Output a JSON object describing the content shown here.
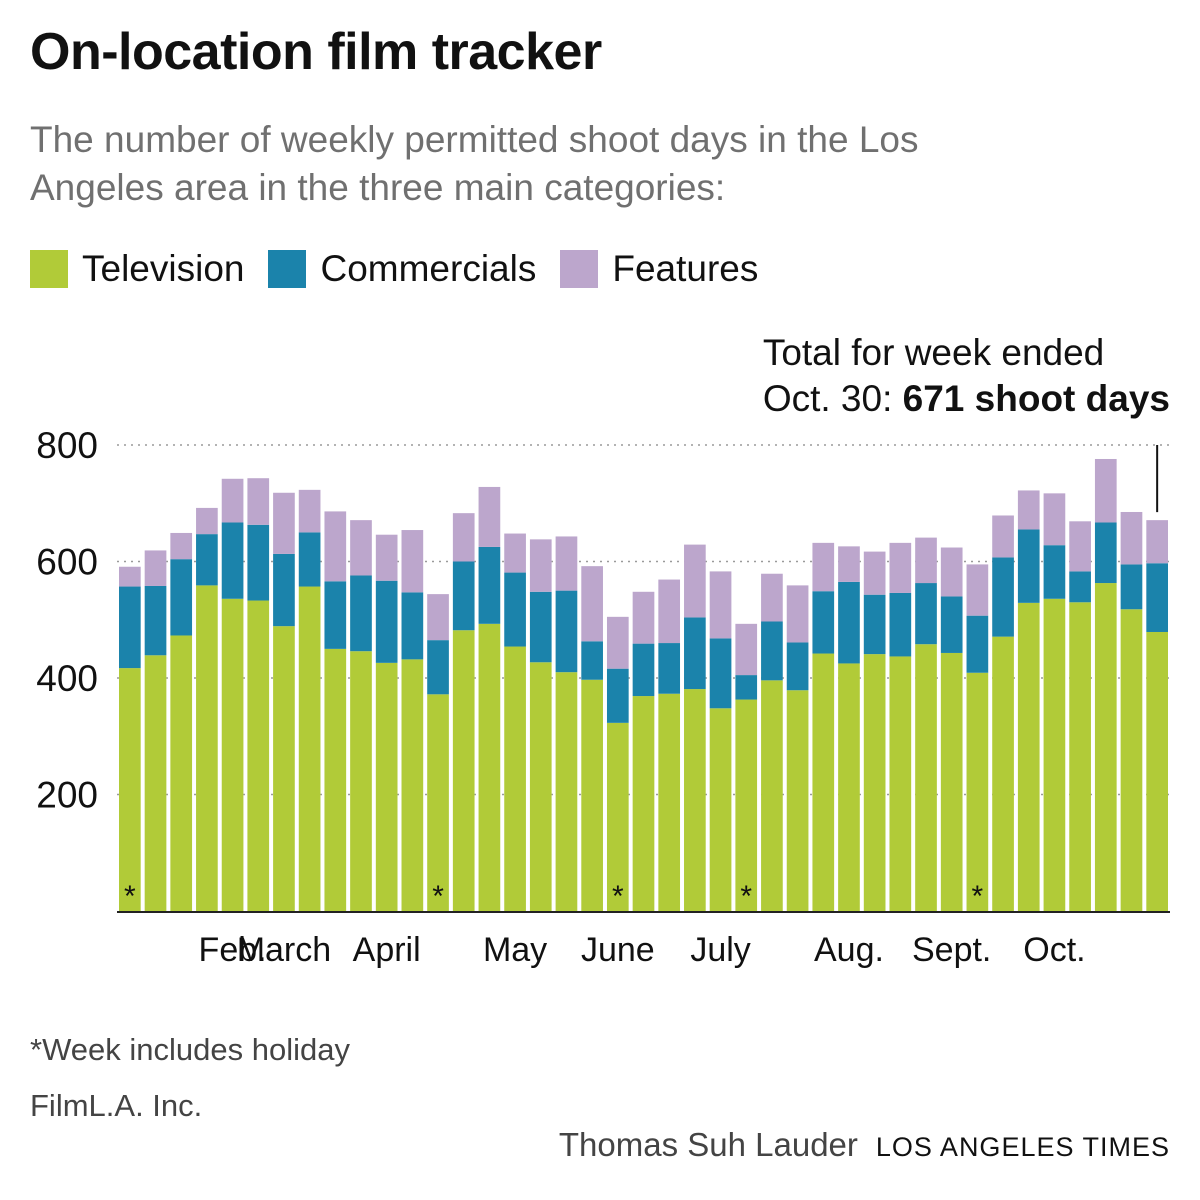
{
  "title": "On-location film tracker",
  "subtitle": "The number of weekly permitted shoot days in the Los Angeles area in the three main categories:",
  "annotation": {
    "line1": "Total for week ended",
    "line2_prefix": "Oct. 30: ",
    "line2_bold": "671 shoot days"
  },
  "footnote": "*Week includes holiday",
  "source": "FilmL.A. Inc.",
  "credit": {
    "author": "Thomas Suh Lauder",
    "publisher": "LOS ANGELES TIMES"
  },
  "chart_data": {
    "type": "bar",
    "stacked": true,
    "ylim": [
      0,
      800
    ],
    "y_ticks": [
      "200",
      "400",
      "600",
      "800"
    ],
    "grid": "horizontal dotted",
    "legend_position": "top",
    "holiday_marker": "*",
    "month_labels": [
      {
        "label": "Feb.",
        "week_index": 4
      },
      {
        "label": "March",
        "week_index": 6
      },
      {
        "label": "April",
        "week_index": 10
      },
      {
        "label": "May",
        "week_index": 15
      },
      {
        "label": "June",
        "week_index": 19
      },
      {
        "label": "July",
        "week_index": 23
      },
      {
        "label": "Aug.",
        "week_index": 28
      },
      {
        "label": "Sept.",
        "week_index": 32
      },
      {
        "label": "Oct.",
        "week_index": 36
      }
    ],
    "holiday_weeks": [
      0,
      12,
      19,
      24,
      33
    ],
    "series": [
      {
        "name": "Television",
        "color": "#b1cb38",
        "values": [
          417,
          439,
          473,
          559,
          536,
          533,
          489,
          557,
          450,
          446,
          426,
          432,
          372,
          482,
          493,
          454,
          427,
          410,
          397,
          323,
          369,
          373,
          381,
          348,
          363,
          396,
          379,
          442,
          425,
          441,
          437,
          458,
          443,
          409,
          471,
          529,
          536,
          530,
          563,
          518,
          479
        ]
      },
      {
        "name": "Commercials",
        "color": "#1b83ab",
        "values": [
          140,
          119,
          131,
          88,
          131,
          130,
          124,
          93,
          116,
          130,
          141,
          115,
          93,
          118,
          132,
          127,
          121,
          140,
          66,
          93,
          90,
          87,
          123,
          120,
          42,
          101,
          82,
          107,
          140,
          102,
          109,
          105,
          97,
          98,
          136,
          126,
          92,
          53,
          104,
          77,
          118
        ]
      },
      {
        "name": "Features",
        "color": "#bca6cc",
        "values": [
          34,
          61,
          45,
          45,
          75,
          80,
          105,
          73,
          120,
          95,
          79,
          107,
          79,
          83,
          103,
          67,
          90,
          93,
          129,
          89,
          89,
          109,
          125,
          115,
          88,
          82,
          98,
          83,
          61,
          74,
          86,
          78,
          84,
          88,
          72,
          67,
          89,
          86,
          109,
          90,
          74
        ]
      }
    ]
  }
}
